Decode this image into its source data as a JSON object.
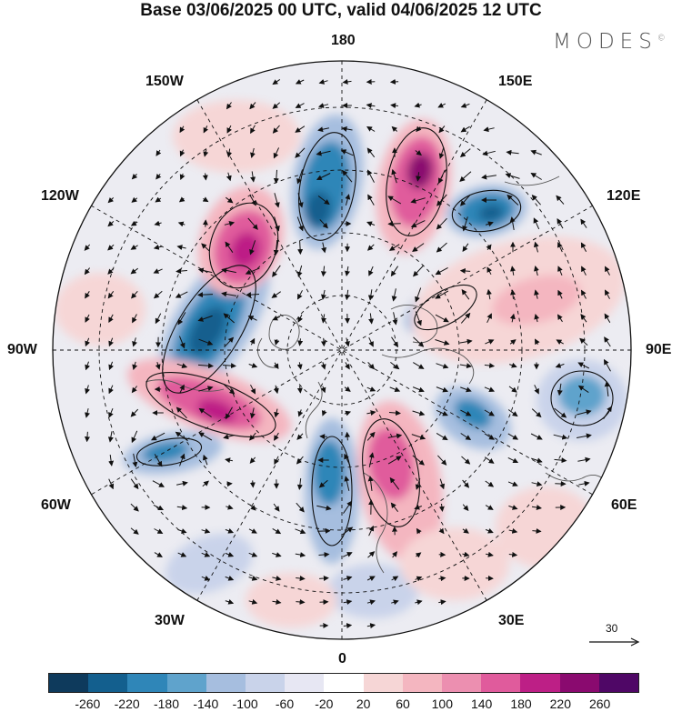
{
  "title": "Base 03/06/2025 00 UTC, valid 04/06/2025 12 UTC",
  "brand": {
    "name": "MODES",
    "mark": "©"
  },
  "lon_labels": {
    "top": "180",
    "bottom": "0",
    "left": "90W",
    "right": "90E",
    "upper_left_1": "150W",
    "upper_left_2": "120W",
    "upper_right_1": "150E",
    "upper_right_2": "120E",
    "lower_left_1": "60W",
    "lower_left_2": "30W",
    "lower_right_1": "60E",
    "lower_right_2": "30E"
  },
  "reference_vector": {
    "value": "30"
  },
  "colorbar": {
    "tick_labels": [
      "-260",
      "-220",
      "-180",
      "-140",
      "-100",
      "-60",
      "-20",
      "20",
      "60",
      "100",
      "140",
      "180",
      "220",
      "260"
    ],
    "colors": [
      "#0e3a5c",
      "#135f8e",
      "#2f86b8",
      "#5fa3cc",
      "#a6bedf",
      "#c9d3ea",
      "#e7e7f3",
      "#ffffff",
      "#f6d6d6",
      "#f4b6c0",
      "#ec8fb0",
      "#e05b9c",
      "#bd1f86",
      "#8a0a6f",
      "#4f0766"
    ]
  },
  "icons": [
    "wind-arrow-icon"
  ]
}
